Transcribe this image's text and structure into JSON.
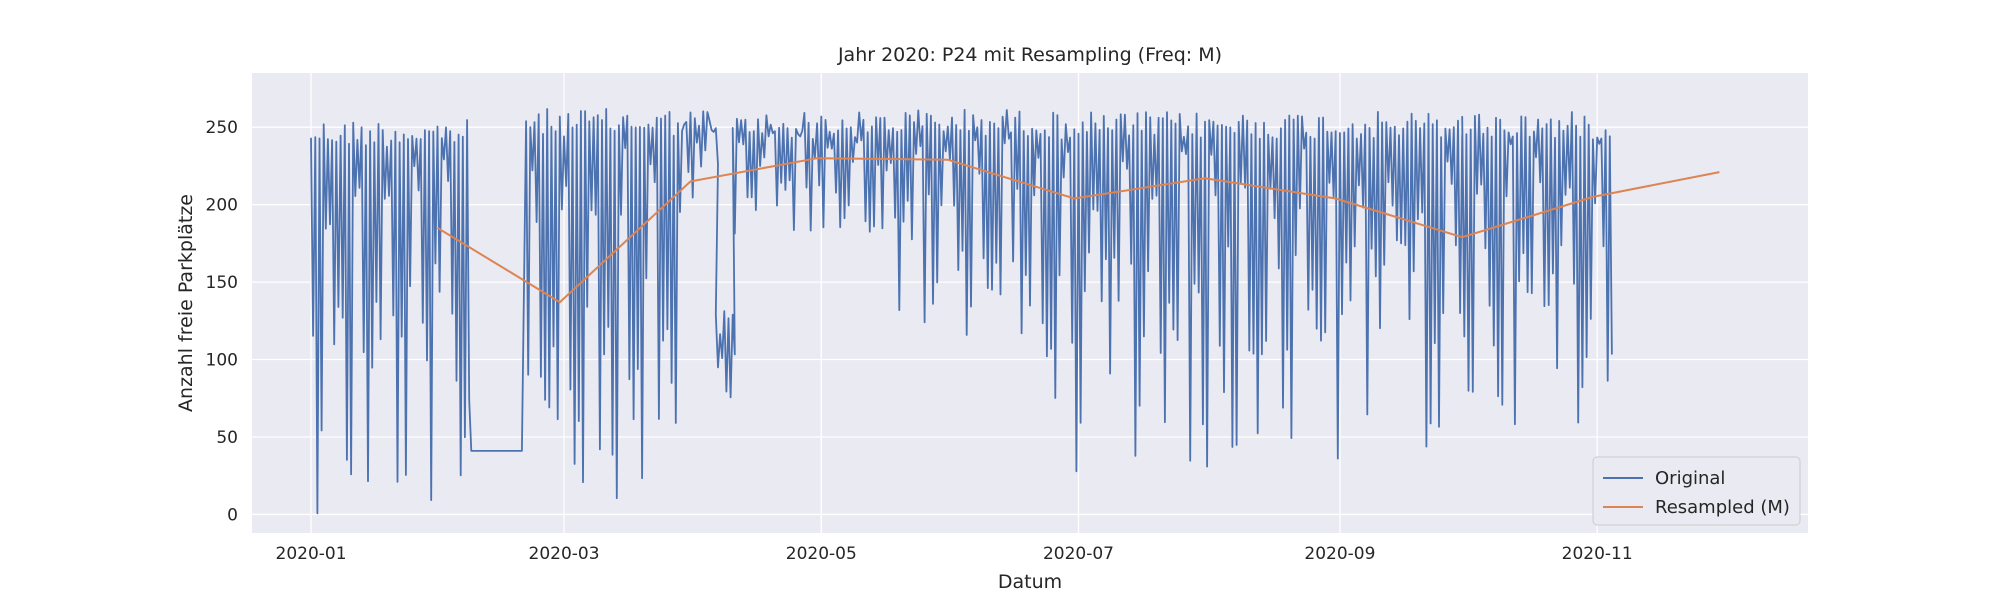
{
  "chart_data": {
    "type": "line",
    "title": "Jahr 2020: P24 mit Resampling (Freq: M)",
    "xlabel": "Datum",
    "ylabel": "Anzahl freie Parkplätze",
    "x_ticks": [
      "2020-01",
      "2020-03",
      "2020-05",
      "2020-07",
      "2020-09",
      "2020-11"
    ],
    "y_ticks": [
      0,
      50,
      100,
      150,
      200,
      250
    ],
    "ylim": [
      -12,
      285
    ],
    "xlim": [
      "2019-12-18",
      "2020-12-21"
    ],
    "grid": true,
    "legend_position": "lower right",
    "colors": {
      "original": "#4c72b0",
      "resampled": "#dd8452",
      "plot_bg": "#eaeaf2",
      "grid": "#ffffff"
    },
    "series": [
      {
        "name": "Original",
        "description": "hourly counts of free spaces, strong daily oscillation roughly between the low and high values below",
        "segments": [
          {
            "start": "2020-01-01",
            "end": "2020-02-07",
            "high": 255,
            "low": 0
          },
          {
            "start": "2020-02-08",
            "end": "2020-02-20",
            "flat_value": 41
          },
          {
            "start": "2020-02-21",
            "end": "2020-03-28",
            "high": 262,
            "low": 10
          },
          {
            "start": "2020-03-29",
            "end": "2020-04-06",
            "high": 262,
            "low": 200
          },
          {
            "start": "2020-04-06",
            "end": "2020-04-10",
            "high": 133,
            "low": 75
          },
          {
            "start": "2020-04-10",
            "end": "2020-05-15",
            "high": 260,
            "low": 180
          },
          {
            "start": "2020-05-15",
            "end": "2020-06-20",
            "high": 262,
            "low": 115
          },
          {
            "start": "2020-06-20",
            "end": "2020-09-30",
            "high": 260,
            "low": 25
          },
          {
            "start": "2020-09-30",
            "end": "2020-11-04",
            "high": 260,
            "low": 58
          }
        ]
      },
      {
        "name": "Resampled (M)",
        "x": [
          "2020-01-31",
          "2020-02-29",
          "2020-03-31",
          "2020-04-30",
          "2020-05-31",
          "2020-06-30",
          "2020-07-31",
          "2020-08-31",
          "2020-09-30",
          "2020-10-31",
          "2020-11-30"
        ],
        "values": [
          185,
          137,
          215,
          230,
          229,
          204,
          217,
          204,
          179,
          205,
          221
        ]
      }
    ]
  }
}
